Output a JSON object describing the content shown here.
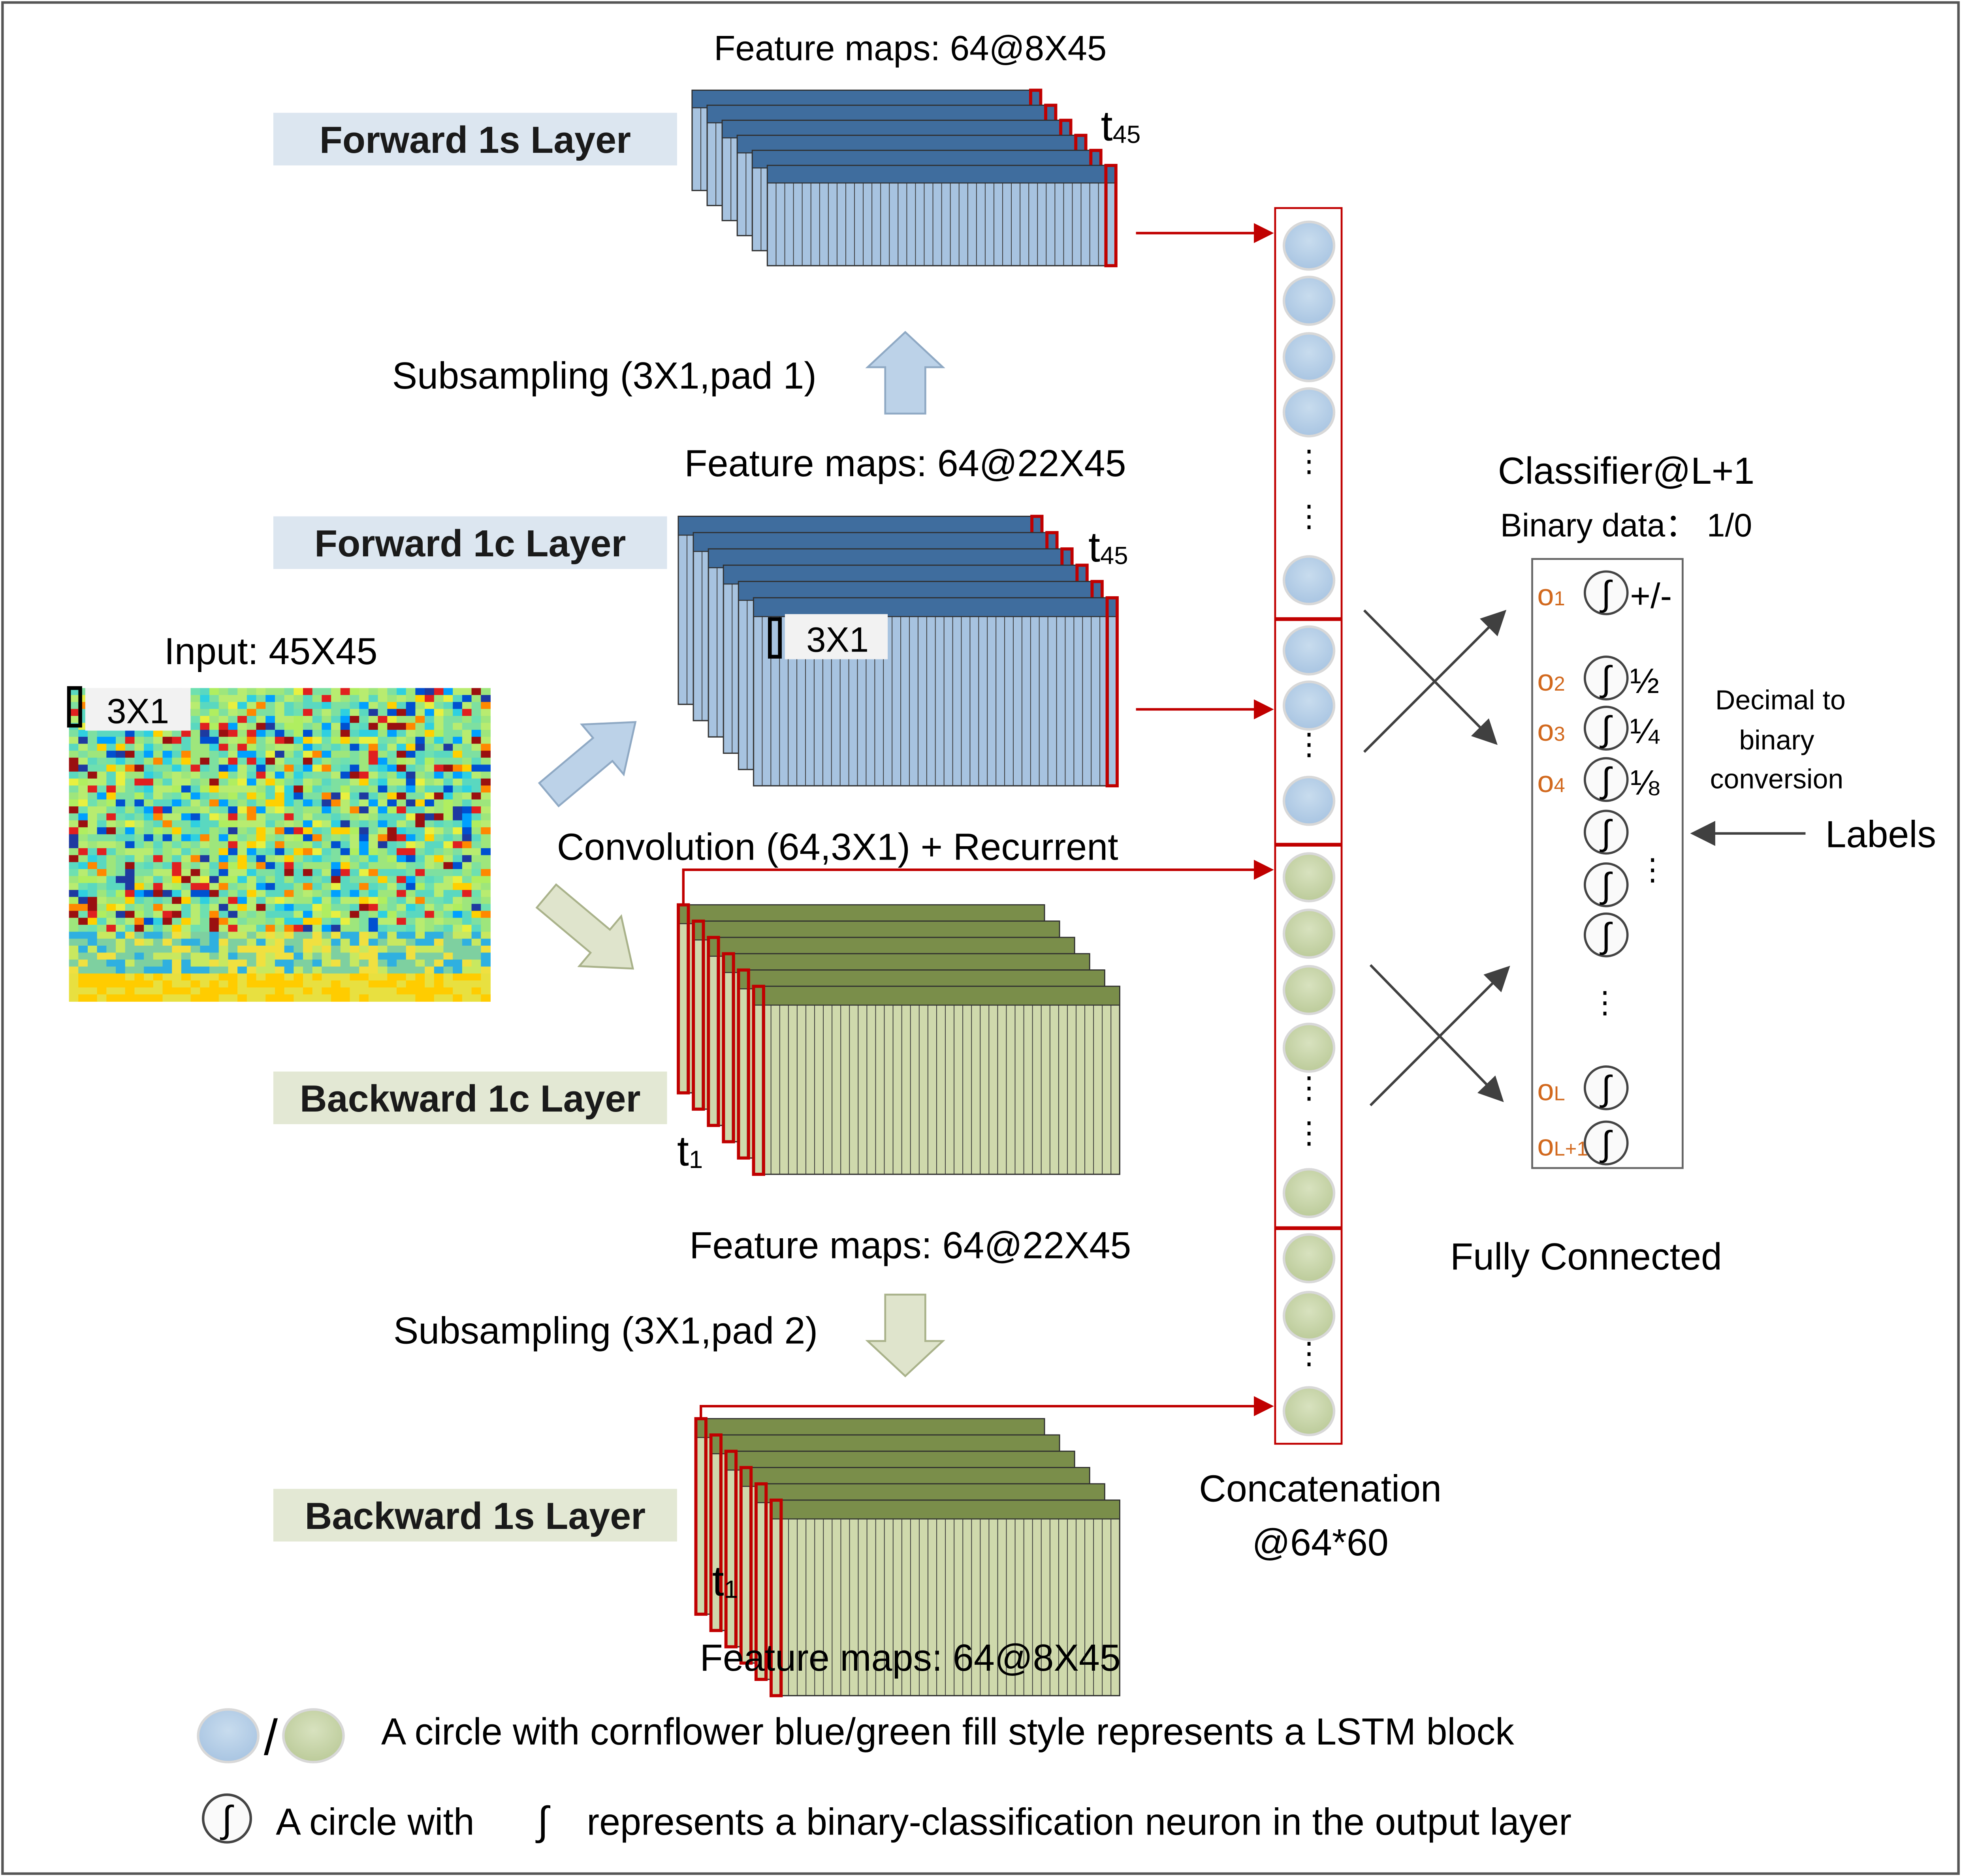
{
  "forward_1s": {
    "title": "Forward 1s Layer",
    "feature_maps": "Feature maps: 64@8X45",
    "t_label": "t",
    "t_sub": "45"
  },
  "subsampling_top": "Subsampling (3X1,pad 1)",
  "forward_1c": {
    "title": "Forward 1c Layer",
    "feature_maps": "Feature maps: 64@22X45",
    "t_label": "t",
    "t_sub": "45",
    "kernel_label": "3X1"
  },
  "input": {
    "title": "Input: 45X45",
    "kernel_label": "3X1"
  },
  "convolution_label": "Convolution (64,3X1) + Recurrent",
  "backward_1c": {
    "title": "Backward 1c Layer",
    "feature_maps": "Feature maps: 64@22X45",
    "t_label": "t",
    "t_sub": "1"
  },
  "subsampling_bottom": "Subsampling (3X1,pad 2)",
  "backward_1s": {
    "title": "Backward 1s Layer",
    "feature_maps": "Feature maps: 64@8X45",
    "t_label": "t",
    "t_sub": "1"
  },
  "concatenation": {
    "line1": "Concatenation",
    "line2": "@64*60",
    "ellipsis": "⋮"
  },
  "classifier": {
    "title": "Classifier@L+1",
    "binary_data": "Binary data： 1/0",
    "neuron_symbol": "∫",
    "ellipsis": "⋮",
    "outputs": [
      {
        "label": "o",
        "sub": "1",
        "value": "+/-"
      },
      {
        "label": "o",
        "sub": "2",
        "value": "½"
      },
      {
        "label": "o",
        "sub": "3",
        "value": "¼"
      },
      {
        "label": "o",
        "sub": "4",
        "value": "⅛"
      },
      {
        "label": "o",
        "sub": "L",
        "value": ""
      },
      {
        "label": "o",
        "sub": "L+1",
        "value": ""
      }
    ],
    "decimal_note": [
      "Decimal to",
      "binary",
      "conversion"
    ],
    "labels": "Labels",
    "fully_connected": "Fully Connected"
  },
  "legend": {
    "lstm_slash": "/",
    "lstm_text": "A circle with cornflower blue/green fill style represents a LSTM block",
    "neuron_prefix": "A circle with",
    "neuron_symbol": "∫",
    "neuron_text": "represents a binary-classification neuron in the output layer"
  },
  "colors": {
    "blue_dark": "#3f6d9e",
    "blue_light": "#a7c3e0",
    "green_dark": "#7a8e4a",
    "green_light": "#cfd9ac",
    "red": "#c00000",
    "orange": "#d2691e",
    "blue_banner": "#dce6f0",
    "green_banner": "#e3e8d4",
    "lstm_blue": "#b3cde6",
    "lstm_green": "#c9d5ad"
  }
}
